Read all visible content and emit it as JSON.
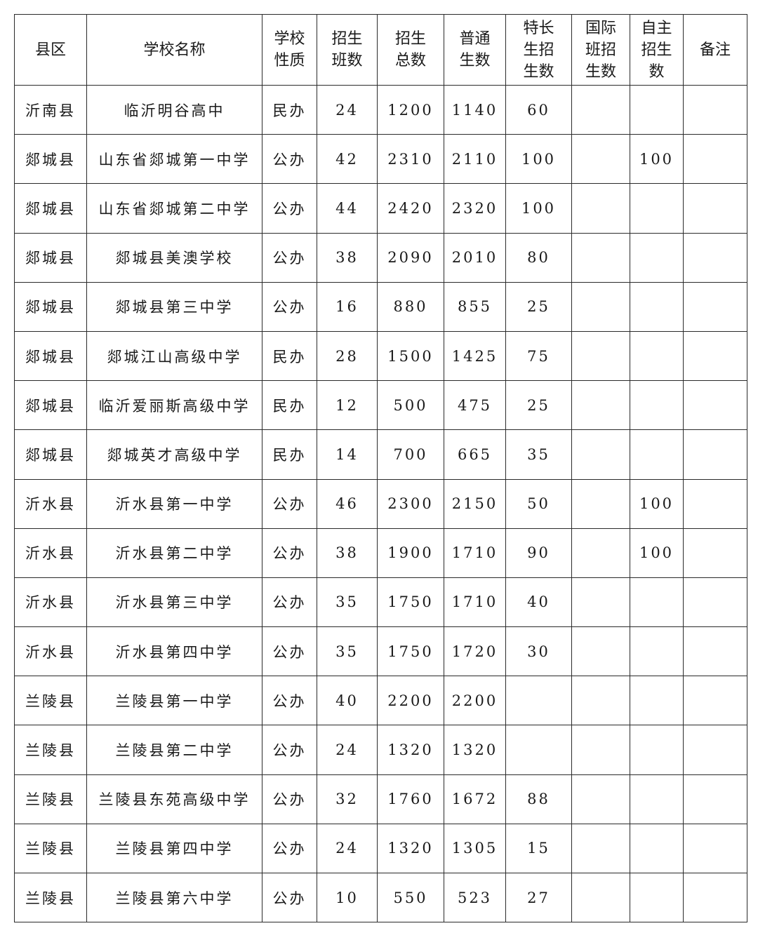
{
  "table": {
    "headers": [
      "县区",
      "学校名称",
      "学校\n性质",
      "招生\n班数",
      "招生\n总数",
      "普通\n生数",
      "特长\n生招\n生数",
      "国际\n班招\n生数",
      "自主\n招生\n数",
      "备注"
    ],
    "rows": [
      [
        "沂南县",
        "临沂明谷高中",
        "民办",
        "24",
        "1200",
        "1140",
        "60",
        "",
        "",
        ""
      ],
      [
        "郯城县",
        "山东省郯城第一中学",
        "公办",
        "42",
        "2310",
        "2110",
        "100",
        "",
        "100",
        ""
      ],
      [
        "郯城县",
        "山东省郯城第二中学",
        "公办",
        "44",
        "2420",
        "2320",
        "100",
        "",
        "",
        ""
      ],
      [
        "郯城县",
        "郯城县美澳学校",
        "公办",
        "38",
        "2090",
        "2010",
        "80",
        "",
        "",
        ""
      ],
      [
        "郯城县",
        "郯城县第三中学",
        "公办",
        "16",
        "880",
        "855",
        "25",
        "",
        "",
        ""
      ],
      [
        "郯城县",
        "郯城江山高级中学",
        "民办",
        "28",
        "1500",
        "1425",
        "75",
        "",
        "",
        ""
      ],
      [
        "郯城县",
        "临沂爱丽斯高级中学",
        "民办",
        "12",
        "500",
        "475",
        "25",
        "",
        "",
        ""
      ],
      [
        "郯城县",
        "郯城英才高级中学",
        "民办",
        "14",
        "700",
        "665",
        "35",
        "",
        "",
        ""
      ],
      [
        "沂水县",
        "沂水县第一中学",
        "公办",
        "46",
        "2300",
        "2150",
        "50",
        "",
        "100",
        ""
      ],
      [
        "沂水县",
        "沂水县第二中学",
        "公办",
        "38",
        "1900",
        "1710",
        "90",
        "",
        "100",
        ""
      ],
      [
        "沂水县",
        "沂水县第三中学",
        "公办",
        "35",
        "1750",
        "1710",
        "40",
        "",
        "",
        ""
      ],
      [
        "沂水县",
        "沂水县第四中学",
        "公办",
        "35",
        "1750",
        "1720",
        "30",
        "",
        "",
        ""
      ],
      [
        "兰陵县",
        "兰陵县第一中学",
        "公办",
        "40",
        "2200",
        "2200",
        "",
        "",
        "",
        ""
      ],
      [
        "兰陵县",
        "兰陵县第二中学",
        "公办",
        "24",
        "1320",
        "1320",
        "",
        "",
        "",
        ""
      ],
      [
        "兰陵县",
        "兰陵县东苑高级中学",
        "公办",
        "32",
        "1760",
        "1672",
        "88",
        "",
        "",
        ""
      ],
      [
        "兰陵县",
        "兰陵县第四中学",
        "公办",
        "24",
        "1320",
        "1305",
        "15",
        "",
        "",
        ""
      ],
      [
        "兰陵县",
        "兰陵县第六中学",
        "公办",
        "10",
        "550",
        "523",
        "27",
        "",
        "",
        ""
      ]
    ]
  }
}
